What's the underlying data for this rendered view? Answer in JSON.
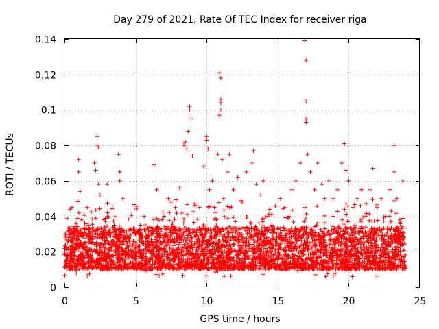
{
  "chart_data": {
    "type": "scatter",
    "title": "Day 279 of 2021, Rate Of TEC Index for receiver riga",
    "xlabel": "GPS time / hours",
    "ylabel": "ROTI / TECUs",
    "xlim": [
      0,
      25
    ],
    "ylim": [
      0,
      0.14
    ],
    "xticks": [
      0,
      5,
      10,
      15,
      20,
      25
    ],
    "xtick_labels": [
      "0",
      "5",
      "10",
      "15",
      "20",
      "25"
    ],
    "yticks": [
      0,
      0.02,
      0.04,
      0.06,
      0.08,
      0.1,
      0.12,
      0.14
    ],
    "ytick_labels": [
      "0",
      "0.02",
      "0.04",
      "0.06",
      "0.08",
      "0.1",
      "0.12",
      "0.14"
    ],
    "grid": true,
    "marker": "+",
    "color": "#ff0000",
    "series": [
      {
        "name": "ROTI",
        "note": "dense band of ~0.01-0.035 TECU/s across 0-24 h; listed points are representative and notable outliers",
        "points": [
          [
            0.1,
            0.015
          ],
          [
            0.2,
            0.025
          ],
          [
            0.3,
            0.032
          ],
          [
            0.4,
            0.044
          ],
          [
            0.5,
            0.02
          ],
          [
            0.7,
            0.018
          ],
          [
            0.9,
            0.03
          ],
          [
            1.0,
            0.072
          ],
          [
            1.0,
            0.065
          ],
          [
            1.1,
            0.054
          ],
          [
            1.2,
            0.038
          ],
          [
            1.4,
            0.022
          ],
          [
            1.6,
            0.045
          ],
          [
            1.8,
            0.028
          ],
          [
            2.1,
            0.07
          ],
          [
            2.2,
            0.066
          ],
          [
            2.3,
            0.085
          ],
          [
            2.3,
            0.08
          ],
          [
            2.4,
            0.079
          ],
          [
            2.4,
            0.058
          ],
          [
            2.5,
            0.052
          ],
          [
            2.7,
            0.03
          ],
          [
            3.0,
            0.058
          ],
          [
            3.2,
            0.025
          ],
          [
            3.5,
            0.035
          ],
          [
            3.8,
            0.075
          ],
          [
            3.9,
            0.065
          ],
          [
            3.9,
            0.06
          ],
          [
            4.1,
            0.05
          ],
          [
            4.3,
            0.028
          ],
          [
            4.6,
            0.032
          ],
          [
            5.0,
            0.022
          ],
          [
            5.3,
            0.03
          ],
          [
            5.6,
            0.04
          ],
          [
            6.0,
            0.034
          ],
          [
            6.3,
            0.069
          ],
          [
            6.5,
            0.055
          ],
          [
            6.8,
            0.025
          ],
          [
            7.0,
            0.04
          ],
          [
            7.3,
            0.05
          ],
          [
            7.5,
            0.048
          ],
          [
            7.8,
            0.045
          ],
          [
            8.1,
            0.056
          ],
          [
            8.4,
            0.08
          ],
          [
            8.5,
            0.082
          ],
          [
            8.6,
            0.078
          ],
          [
            8.7,
            0.088
          ],
          [
            8.8,
            0.1
          ],
          [
            8.8,
            0.102
          ],
          [
            8.9,
            0.095
          ],
          [
            9.0,
            0.074
          ],
          [
            9.2,
            0.046
          ],
          [
            9.5,
            0.045
          ],
          [
            9.8,
            0.068
          ],
          [
            10.0,
            0.085
          ],
          [
            10.0,
            0.083
          ],
          [
            10.1,
            0.078
          ],
          [
            10.2,
            0.055
          ],
          [
            10.4,
            0.06
          ],
          [
            10.6,
            0.042
          ],
          [
            10.8,
            0.075
          ],
          [
            10.9,
            0.121
          ],
          [
            11.0,
            0.118
          ],
          [
            11.0,
            0.106
          ],
          [
            11.0,
            0.104
          ],
          [
            11.0,
            0.1
          ],
          [
            10.9,
            0.097
          ],
          [
            11.1,
            0.072
          ],
          [
            11.2,
            0.05
          ],
          [
            11.5,
            0.065
          ],
          [
            11.6,
            0.075
          ],
          [
            11.9,
            0.055
          ],
          [
            12.2,
            0.062
          ],
          [
            12.5,
            0.048
          ],
          [
            12.8,
            0.065
          ],
          [
            13.2,
            0.07
          ],
          [
            13.3,
            0.077
          ],
          [
            13.5,
            0.058
          ],
          [
            13.8,
            0.052
          ],
          [
            14.0,
            0.06
          ],
          [
            14.3,
            0.04
          ],
          [
            14.6,
            0.035
          ],
          [
            14.9,
            0.03
          ],
          [
            15.2,
            0.05
          ],
          [
            15.5,
            0.045
          ],
          [
            15.8,
            0.04
          ],
          [
            16.0,
            0.055
          ],
          [
            16.3,
            0.06
          ],
          [
            16.6,
            0.07
          ],
          [
            16.9,
            0.139
          ],
          [
            17.0,
            0.128
          ],
          [
            17.0,
            0.105
          ],
          [
            17.0,
            0.095
          ],
          [
            17.0,
            0.093
          ],
          [
            17.1,
            0.075
          ],
          [
            17.3,
            0.065
          ],
          [
            17.6,
            0.055
          ],
          [
            17.8,
            0.07
          ],
          [
            18.1,
            0.058
          ],
          [
            18.3,
            0.05
          ],
          [
            18.6,
            0.06
          ],
          [
            18.9,
            0.05
          ],
          [
            19.2,
            0.055
          ],
          [
            19.5,
            0.07
          ],
          [
            19.7,
            0.081
          ],
          [
            19.8,
            0.066
          ],
          [
            20.0,
            0.06
          ],
          [
            20.3,
            0.045
          ],
          [
            20.6,
            0.05
          ],
          [
            20.9,
            0.055
          ],
          [
            21.2,
            0.04
          ],
          [
            21.5,
            0.055
          ],
          [
            21.7,
            0.067
          ],
          [
            22.0,
            0.045
          ],
          [
            22.3,
            0.05
          ],
          [
            22.6,
            0.04
          ],
          [
            22.9,
            0.055
          ],
          [
            23.2,
            0.08
          ],
          [
            23.2,
            0.065
          ],
          [
            23.4,
            0.05
          ],
          [
            23.6,
            0.038
          ],
          [
            23.8,
            0.06
          ],
          [
            23.9,
            0.025
          ]
        ]
      }
    ]
  }
}
